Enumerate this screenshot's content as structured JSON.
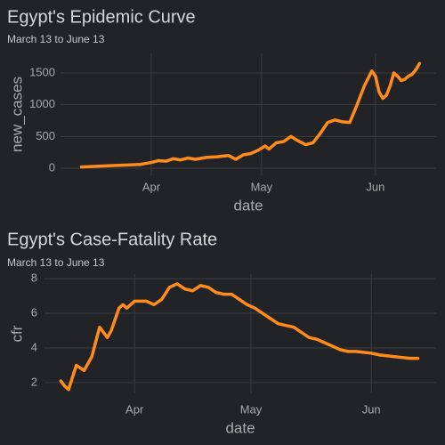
{
  "chart_data": [
    {
      "type": "line",
      "title": "Egypt's Epidemic Curve",
      "subtitle": "March 13 to June 13",
      "x_label": "date",
      "y_label": "new_cases",
      "color": "#ff8c1a",
      "grid": true,
      "x": [
        0,
        4,
        8,
        12,
        16,
        19,
        21,
        23,
        25,
        27,
        29,
        31,
        34,
        37,
        40,
        42,
        44,
        46,
        48,
        50,
        51,
        53,
        55,
        57,
        59,
        61,
        63,
        65,
        67,
        69,
        71,
        73,
        75,
        77,
        79,
        80,
        81,
        82,
        83,
        84,
        85,
        86,
        87,
        88,
        89,
        90,
        91,
        92
      ],
      "values": [
        20,
        30,
        40,
        50,
        60,
        90,
        120,
        110,
        150,
        130,
        160,
        140,
        170,
        180,
        200,
        140,
        210,
        230,
        280,
        350,
        300,
        400,
        420,
        500,
        430,
        370,
        400,
        550,
        720,
        760,
        730,
        720,
        1000,
        1300,
        1530,
        1450,
        1200,
        1100,
        1150,
        1300,
        1500,
        1450,
        1380,
        1400,
        1450,
        1480,
        1550,
        1650
      ],
      "xlim": [
        -5.7,
        96.5
      ],
      "xticks": [
        {
          "value": 19,
          "label": "Apr"
        },
        {
          "value": 49,
          "label": "May"
        },
        {
          "value": 80,
          "label": "Jun"
        }
      ],
      "ylim": [
        -112,
        1808
      ],
      "yticks": [
        0,
        500,
        1000,
        1500
      ]
    },
    {
      "type": "line",
      "title": "Egypt's Case-Fatality Rate",
      "subtitle": "March 13 to June 13",
      "x_label": "date",
      "y_label": "cfr",
      "color": "#ff8c1a",
      "grid": true,
      "x": [
        0,
        1,
        2,
        4,
        6,
        8,
        10,
        12,
        13,
        15,
        16,
        17,
        19,
        22,
        24,
        26,
        28,
        30,
        32,
        34,
        36,
        38,
        40,
        42,
        44,
        46,
        48,
        50,
        52,
        54,
        56,
        58,
        60,
        62,
        64,
        66,
        68,
        70,
        72,
        74,
        76,
        78,
        80,
        82,
        84,
        86,
        88,
        90,
        92
      ],
      "values": [
        2.1,
        1.8,
        1.6,
        3.0,
        2.7,
        3.5,
        5.2,
        4.6,
        5.0,
        6.3,
        6.5,
        6.3,
        6.7,
        6.7,
        6.5,
        6.8,
        7.5,
        7.7,
        7.4,
        7.3,
        7.6,
        7.5,
        7.2,
        7.1,
        7.1,
        6.8,
        6.5,
        6.3,
        6.0,
        5.7,
        5.4,
        5.3,
        5.2,
        4.9,
        4.6,
        4.5,
        4.3,
        4.1,
        3.9,
        3.8,
        3.8,
        3.75,
        3.7,
        3.6,
        3.55,
        3.5,
        3.45,
        3.4,
        3.4
      ],
      "xlim": [
        -4.2,
        96.7
      ],
      "xticks": [
        {
          "value": 19,
          "label": "Apr"
        },
        {
          "value": 49,
          "label": "May"
        },
        {
          "value": 80,
          "label": "Jun"
        }
      ],
      "ylim": [
        1.38,
        8.26
      ],
      "yticks": [
        2,
        4,
        6,
        8
      ]
    }
  ]
}
